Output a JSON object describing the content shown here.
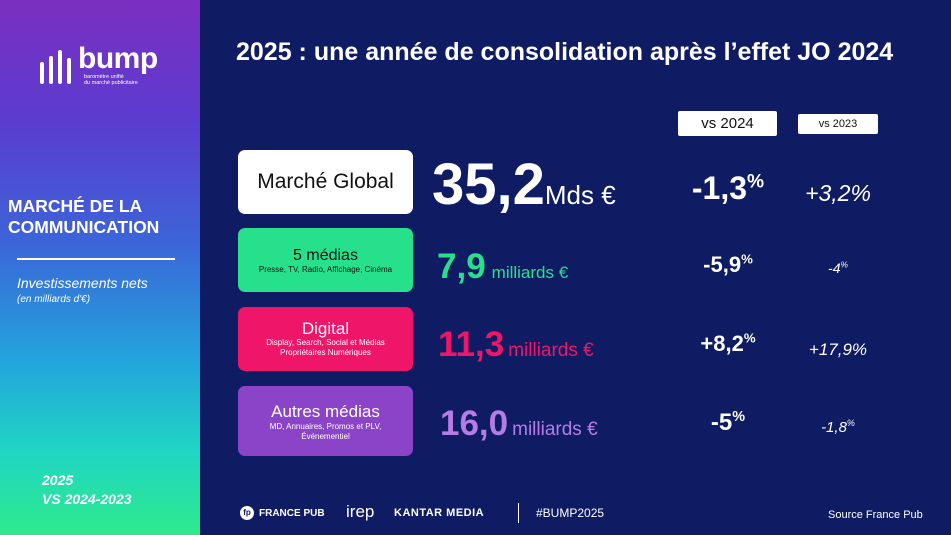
{
  "brand": {
    "name": "bump",
    "tagline_line1": "baromètre unifié",
    "tagline_line2": "du marché publicitaire"
  },
  "sidebar": {
    "title_line1": "MARCHÉ DE LA",
    "title_line2": "COMMUNICATION",
    "subtitle": "Investissements nets",
    "subnote": "(en milliards d'€)",
    "period_line1": "2025",
    "period_line2": "VS 2024-2023"
  },
  "title": "2025 : une année de consolidation après l’effet JO 2024",
  "columns": {
    "vs2024": "vs 2024",
    "vs2023": "vs 2023"
  },
  "rows": [
    {
      "label": "Marché Global",
      "detail": "",
      "detail2": "",
      "amount": "35,2",
      "unit": "Mds €",
      "vs2024_value": "-1,3",
      "vs2024_suffix": "%",
      "vs2023_value": "+3,2%",
      "vs2023_suffix": "",
      "color": "#ffffff"
    },
    {
      "label": "5 médias",
      "detail": "Presse, TV, Radio, Affichage, Cinéma",
      "detail2": "",
      "amount": "7,9",
      "unit": "milliards €",
      "vs2024_value": "-5,9",
      "vs2024_suffix": "%",
      "vs2023_value": "-4",
      "vs2023_suffix": "%",
      "color": "#27e08b"
    },
    {
      "label": "Digital",
      "detail": "Display, Search, Social et Médias",
      "detail2": "Propriétaires Numériques",
      "amount": "11,3",
      "unit": "milliards €",
      "vs2024_value": "+8,2",
      "vs2024_suffix": "%",
      "vs2023_value": "+17,9%",
      "vs2023_suffix": "",
      "color": "#ef1569"
    },
    {
      "label": "Autres médias",
      "detail": "MD, Annuaires, Promos et PLV,",
      "detail2": "Événementiel",
      "amount": "16,0",
      "unit": "milliards €",
      "vs2024_value": "-5",
      "vs2024_suffix": "%",
      "vs2023_value": "-1,8",
      "vs2023_suffix": "%",
      "color": "#8b44c7"
    }
  ],
  "footer": {
    "partner1": "FRANCE PUB",
    "partner1_mark": "fp",
    "partner2": "irep",
    "partner3": "KANTAR MEDIA",
    "hashtag": "#BUMP2025",
    "source": "Source France Pub"
  },
  "colors": {
    "background": "#0f1c63",
    "accent_green": "#27e08b",
    "accent_pink": "#ef1569",
    "accent_purple": "#8b44c7"
  }
}
